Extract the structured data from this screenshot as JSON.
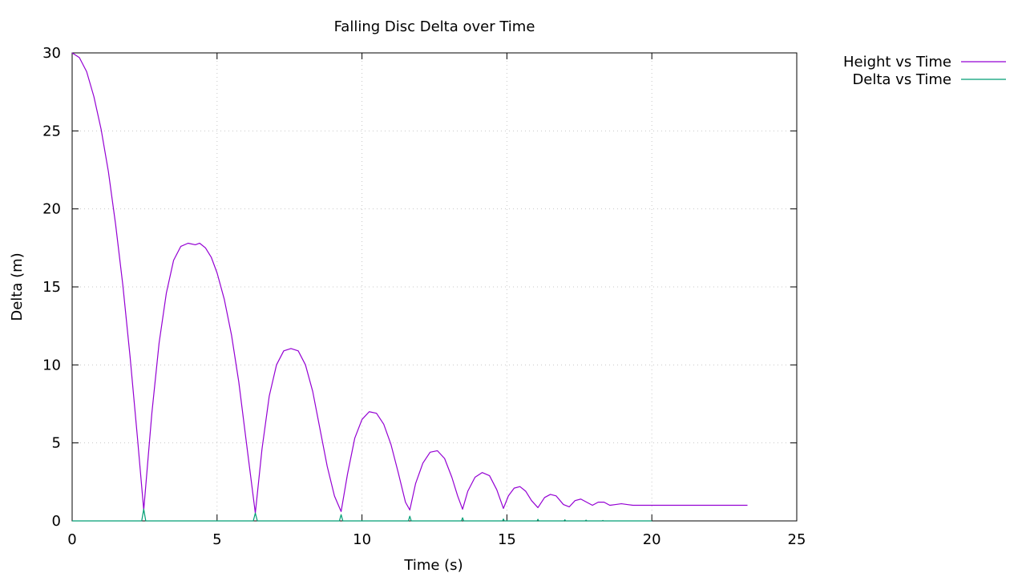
{
  "chart_data": {
    "type": "line",
    "title": "Falling Disc Delta over Time",
    "xlabel": "Time (s)",
    "ylabel": "Delta (m)",
    "xlim": [
      0,
      25
    ],
    "ylim": [
      0,
      30
    ],
    "x_ticks": [
      0,
      5,
      10,
      15,
      20,
      25
    ],
    "y_ticks": [
      0,
      5,
      10,
      15,
      20,
      25,
      30
    ],
    "grid": true,
    "legend_position": "top-right-outside",
    "series": [
      {
        "name": "Height vs Time",
        "color": "#9400d3",
        "x": [
          0.0,
          0.25,
          0.5,
          0.75,
          1.0,
          1.25,
          1.5,
          1.75,
          2.0,
          2.25,
          2.47,
          2.75,
          3.0,
          3.25,
          3.5,
          3.75,
          4.0,
          4.25,
          4.4,
          4.6,
          4.8,
          5.0,
          5.25,
          5.5,
          5.75,
          6.0,
          6.32,
          6.55,
          6.8,
          7.05,
          7.3,
          7.55,
          7.8,
          8.05,
          8.3,
          8.55,
          8.8,
          9.05,
          9.28,
          9.5,
          9.75,
          10.0,
          10.25,
          10.5,
          10.75,
          11.0,
          11.25,
          11.5,
          11.65,
          11.85,
          12.1,
          12.35,
          12.6,
          12.85,
          13.1,
          13.3,
          13.47,
          13.65,
          13.9,
          14.15,
          14.4,
          14.65,
          14.88,
          15.05,
          15.25,
          15.45,
          15.65,
          15.85,
          16.07,
          16.3,
          16.5,
          16.7,
          16.95,
          17.15,
          17.35,
          17.55,
          17.75,
          17.95,
          18.15,
          18.35,
          18.55,
          18.75,
          18.95,
          19.15,
          19.35,
          19.55,
          19.75,
          20.0,
          21.0,
          22.0,
          23.3
        ],
        "y": [
          30.0,
          29.7,
          28.8,
          27.2,
          25.1,
          22.4,
          19.0,
          15.1,
          10.5,
          5.4,
          0.7,
          6.9,
          11.4,
          14.6,
          16.7,
          17.6,
          17.8,
          17.7,
          17.8,
          17.5,
          16.9,
          15.9,
          14.2,
          11.9,
          8.9,
          5.2,
          0.5,
          4.6,
          8.0,
          10.0,
          10.9,
          11.05,
          10.9,
          10.0,
          8.3,
          5.9,
          3.5,
          1.6,
          0.6,
          3.0,
          5.3,
          6.5,
          7.0,
          6.9,
          6.2,
          4.9,
          3.1,
          1.2,
          0.7,
          2.4,
          3.7,
          4.4,
          4.5,
          4.0,
          2.8,
          1.6,
          0.75,
          1.9,
          2.8,
          3.1,
          2.9,
          2.0,
          0.8,
          1.6,
          2.1,
          2.2,
          1.9,
          1.3,
          0.85,
          1.5,
          1.7,
          1.6,
          1.05,
          0.9,
          1.3,
          1.4,
          1.2,
          1.0,
          1.2,
          1.2,
          1.0,
          1.05,
          1.1,
          1.05,
          1.0,
          1.0,
          1.0,
          1.0,
          1.0,
          1.0,
          1.0
        ]
      },
      {
        "name": "Delta vs Time",
        "color": "#009e73",
        "x": [
          0.0,
          2.4,
          2.47,
          2.54,
          6.25,
          6.32,
          6.39,
          9.22,
          9.28,
          9.34,
          11.6,
          11.65,
          11.7,
          13.43,
          13.47,
          13.51,
          14.85,
          14.88,
          14.91,
          16.04,
          16.07,
          16.1,
          16.97,
          17.0,
          17.03,
          17.7,
          17.73,
          17.76,
          18.28,
          18.31,
          18.34,
          20.0
        ],
        "y": [
          0.0,
          0.0,
          0.75,
          0.0,
          0.0,
          0.5,
          0.0,
          0.0,
          0.4,
          0.0,
          0.0,
          0.3,
          0.0,
          0.0,
          0.2,
          0.0,
          0.0,
          0.12,
          0.0,
          0.0,
          0.1,
          0.0,
          0.0,
          0.07,
          0.0,
          0.0,
          0.05,
          0.0,
          0.0,
          0.03,
          0.0,
          0.0
        ]
      }
    ]
  }
}
